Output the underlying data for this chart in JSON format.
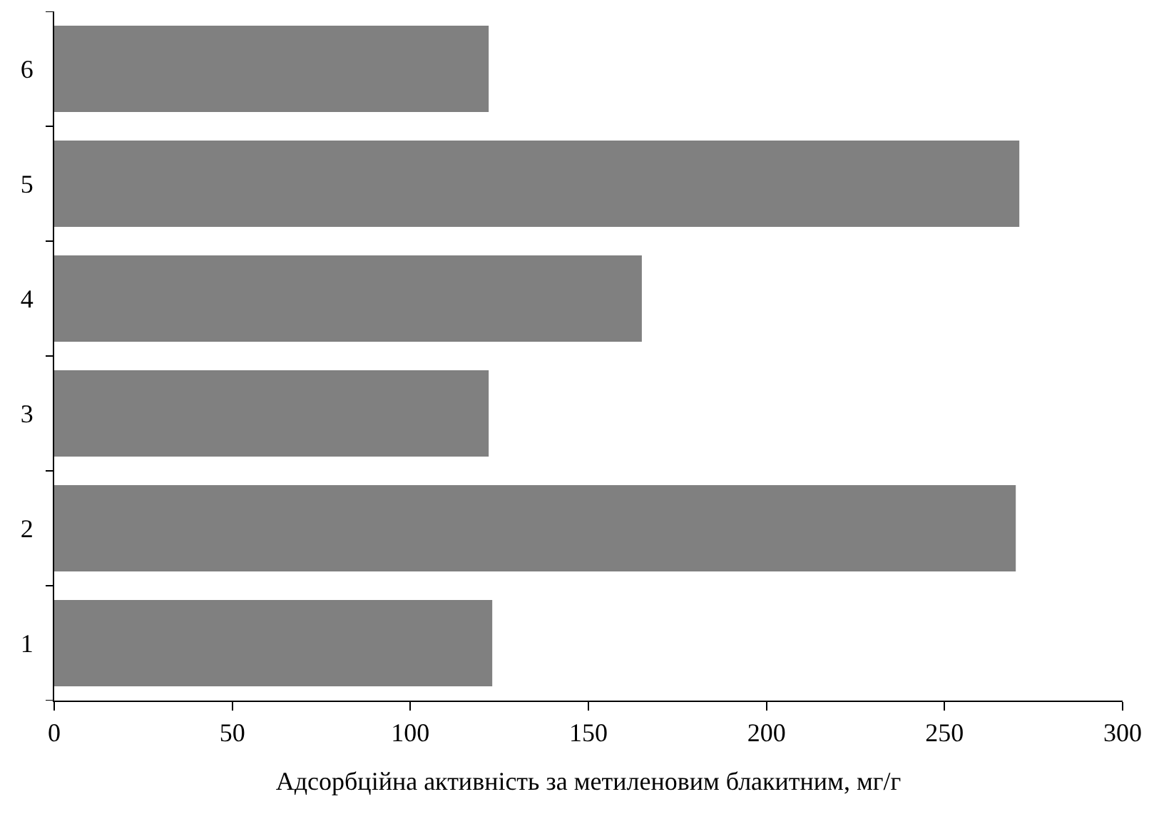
{
  "chart_data": {
    "type": "bar",
    "orientation": "horizontal",
    "xlabel": "Адсорбційна активність за метиленовим блакитним, мг/г",
    "categories": [
      "6",
      "5",
      "4",
      "3",
      "2",
      "1"
    ],
    "values": [
      122,
      271,
      165,
      122,
      270,
      123
    ],
    "color": "#808080",
    "xlim": [
      0,
      300
    ],
    "xticks": [
      0,
      50,
      100,
      150,
      200,
      250,
      300
    ]
  }
}
